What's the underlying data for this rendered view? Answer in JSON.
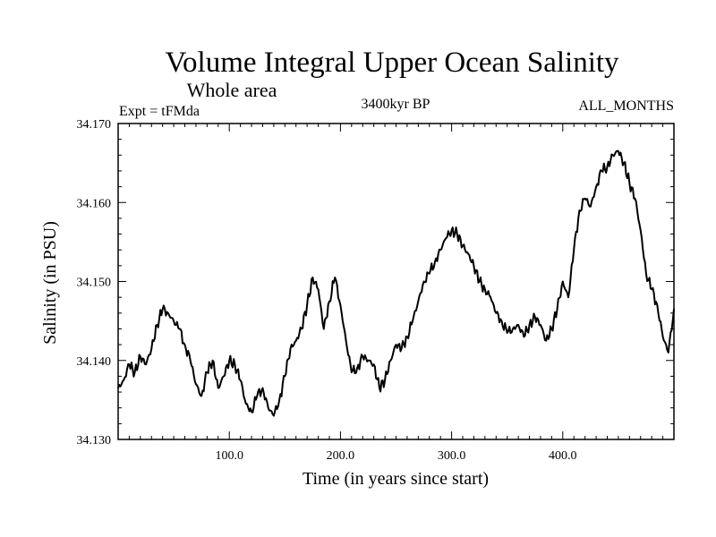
{
  "chart_data": {
    "type": "line",
    "title": "Volume Integral Upper Ocean Salinity",
    "subtitle": "Whole area",
    "left_label": "Expt = tFMda",
    "center_label": "3400kyr BP",
    "right_label": "ALL_MONTHS",
    "xlabel": "Time (in years since start)",
    "ylabel": "Salinity (in PSU)",
    "xlim": [
      0,
      500
    ],
    "ylim": [
      34.13,
      34.17
    ],
    "x_ticks": [
      100,
      200,
      300,
      400
    ],
    "x_tick_labels": [
      "100.0",
      "200.0",
      "300.0",
      "400.0"
    ],
    "y_ticks": [
      34.13,
      34.14,
      34.15,
      34.16,
      34.17
    ],
    "y_tick_labels": [
      "34.130",
      "34.140",
      "34.150",
      "34.160",
      "34.170"
    ],
    "series": [
      {
        "name": "Salinity",
        "color": "#000000",
        "x": [
          0,
          5,
          10,
          15,
          20,
          25,
          30,
          35,
          40,
          45,
          50,
          55,
          60,
          65,
          70,
          75,
          80,
          85,
          90,
          95,
          100,
          105,
          110,
          115,
          120,
          125,
          130,
          135,
          140,
          145,
          150,
          155,
          160,
          165,
          170,
          175,
          180,
          185,
          190,
          195,
          200,
          205,
          210,
          215,
          220,
          225,
          230,
          235,
          240,
          245,
          250,
          255,
          260,
          265,
          270,
          275,
          280,
          285,
          290,
          295,
          300,
          305,
          310,
          315,
          320,
          325,
          330,
          335,
          340,
          345,
          350,
          355,
          360,
          365,
          370,
          375,
          380,
          385,
          390,
          395,
          400,
          405,
          410,
          415,
          420,
          425,
          430,
          435,
          440,
          445,
          450,
          455,
          460,
          465,
          470,
          475,
          480,
          485,
          490,
          495,
          500
        ],
        "values": [
          34.1365,
          34.1375,
          34.1395,
          34.1385,
          34.1405,
          34.1395,
          34.1415,
          34.1445,
          34.1465,
          34.146,
          34.145,
          34.144,
          34.142,
          34.14,
          34.137,
          34.1355,
          34.1385,
          34.14,
          34.1365,
          34.138,
          34.14,
          34.1395,
          34.1375,
          34.1345,
          34.1335,
          34.1355,
          34.1365,
          34.134,
          34.133,
          34.135,
          34.138,
          34.1415,
          34.1425,
          34.144,
          34.147,
          34.1505,
          34.149,
          34.144,
          34.1475,
          34.1505,
          34.147,
          34.1425,
          34.1385,
          34.139,
          34.1405,
          34.14,
          34.1395,
          34.1365,
          34.1375,
          34.14,
          34.142,
          34.1415,
          34.143,
          34.145,
          34.1475,
          34.15,
          34.151,
          34.1525,
          34.154,
          34.1555,
          34.1565,
          34.156,
          34.1545,
          34.1535,
          34.152,
          34.15,
          34.149,
          34.148,
          34.146,
          34.145,
          34.1435,
          34.144,
          34.1445,
          34.143,
          34.1445,
          34.1455,
          34.1445,
          34.1425,
          34.144,
          34.1465,
          34.15,
          34.148,
          34.154,
          34.159,
          34.1605,
          34.1595,
          34.162,
          34.164,
          34.1645,
          34.166,
          34.1665,
          34.165,
          34.1625,
          34.1605,
          34.1565,
          34.151,
          34.149,
          34.147,
          34.143,
          34.141,
          34.1465
        ]
      }
    ]
  }
}
